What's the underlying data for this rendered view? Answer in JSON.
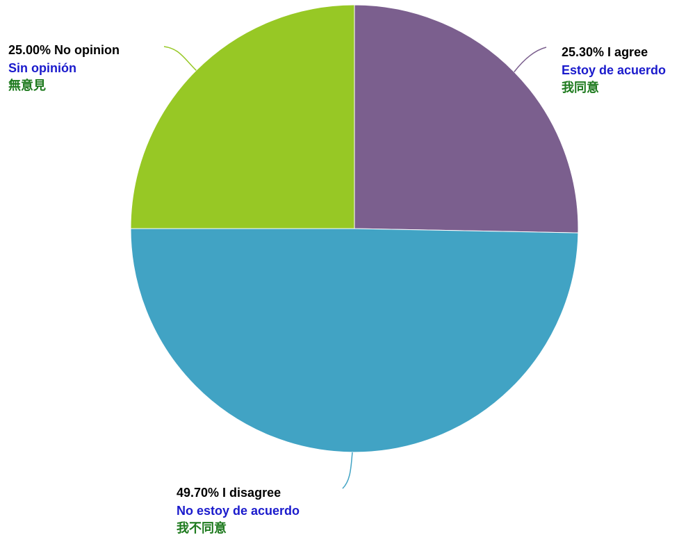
{
  "chart_data": {
    "type": "pie",
    "slices": [
      {
        "label_en": "I agree",
        "label_es": "Estoy de acuerdo",
        "label_zh": "我同意",
        "value": 25.3,
        "percent_text": "25.30%",
        "color": "#7b5f8e"
      },
      {
        "label_en": "I disagree",
        "label_es": "No estoy de acuerdo",
        "label_zh": "我不同意",
        "value": 49.7,
        "percent_text": "49.70%",
        "color": "#41a3c4"
      },
      {
        "label_en": "No opinion",
        "label_es": "Sin opinión",
        "label_zh": "無意見",
        "value": 25.0,
        "percent_text": "25.00%",
        "color": "#97c825"
      }
    ],
    "start_angle": "12 o'clock",
    "direction": "clockwise",
    "label_colors": {
      "english": "#000000",
      "spanish": "#1a1acc",
      "chinese": "#1e7a1e"
    }
  },
  "labels": {
    "agree": {
      "line1": "25.30% I agree",
      "line2": "Estoy de acuerdo",
      "line3": "我同意"
    },
    "disagree": {
      "line1": "49.70% I disagree",
      "line2": "No estoy de acuerdo",
      "line3": "我不同意"
    },
    "no_opinion": {
      "line1": "25.00% No opinion",
      "line2": "Sin opinión",
      "line3": "無意見"
    }
  }
}
